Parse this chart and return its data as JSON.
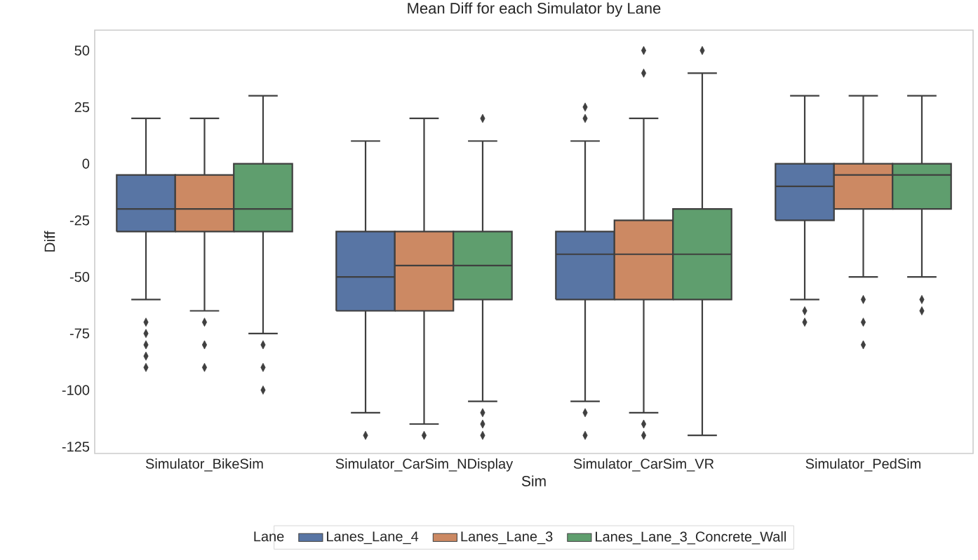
{
  "chart_data": {
    "type": "box",
    "title": "Mean Diff for each Simulator by Lane",
    "xlabel": "Sim",
    "ylabel": "Diff",
    "legend_title": "Lane",
    "categories": [
      "Simulator_BikeSim",
      "Simulator_CarSim_NDisplay",
      "Simulator_CarSim_VR",
      "Simulator_PedSim"
    ],
    "ylim": [
      -128,
      59
    ],
    "yticks": [
      -125,
      -100,
      -75,
      -50,
      -25,
      0,
      25,
      50
    ],
    "grid": false,
    "legend": "bottom",
    "marker": "diamond",
    "series": [
      {
        "name": "Lanes_Lane_4",
        "color": "#5875a4",
        "boxes": [
          {
            "low": -60,
            "q1": -30,
            "median": -20,
            "q3": -5,
            "high": 20,
            "outliers": [
              -70,
              -75,
              -80,
              -85,
              -90
            ]
          },
          {
            "low": -110,
            "q1": -65,
            "median": -50,
            "q3": -30,
            "high": 10,
            "outliers": [
              -120
            ]
          },
          {
            "low": -105,
            "q1": -60,
            "median": -40,
            "q3": -30,
            "high": 10,
            "outliers": [
              25,
              20,
              -110,
              -120
            ]
          },
          {
            "low": -60,
            "q1": -25,
            "median": -10,
            "q3": 0,
            "high": 30,
            "outliers": [
              -65,
              -70
            ]
          }
        ]
      },
      {
        "name": "Lanes_Lane_3",
        "color": "#cc8963",
        "boxes": [
          {
            "low": -65,
            "q1": -30,
            "median": -20,
            "q3": -5,
            "high": 20,
            "outliers": [
              -70,
              -80,
              -90
            ]
          },
          {
            "low": -115,
            "q1": -65,
            "median": -45,
            "q3": -30,
            "high": 20,
            "outliers": [
              -120
            ]
          },
          {
            "low": -110,
            "q1": -60,
            "median": -40,
            "q3": -25,
            "high": 20,
            "outliers": [
              50,
              40,
              -115,
              -120
            ]
          },
          {
            "low": -50,
            "q1": -20,
            "median": -5,
            "q3": 0,
            "high": 30,
            "outliers": [
              -60,
              -70,
              -80
            ]
          }
        ]
      },
      {
        "name": "Lanes_Lane_3_Concrete_Wall",
        "color": "#5f9e6e",
        "boxes": [
          {
            "low": -75,
            "q1": -30,
            "median": -20,
            "q3": 0,
            "high": 30,
            "outliers": [
              -80,
              -90,
              -100
            ]
          },
          {
            "low": -105,
            "q1": -60,
            "median": -45,
            "q3": -30,
            "high": 10,
            "outliers": [
              20,
              -110,
              -115,
              -120
            ]
          },
          {
            "low": -120,
            "q1": -60,
            "median": -40,
            "q3": -20,
            "high": 40,
            "outliers": [
              50
            ]
          },
          {
            "low": -50,
            "q1": -20,
            "median": -5,
            "q3": 0,
            "high": 30,
            "outliers": [
              -60,
              -65
            ]
          }
        ]
      }
    ]
  }
}
